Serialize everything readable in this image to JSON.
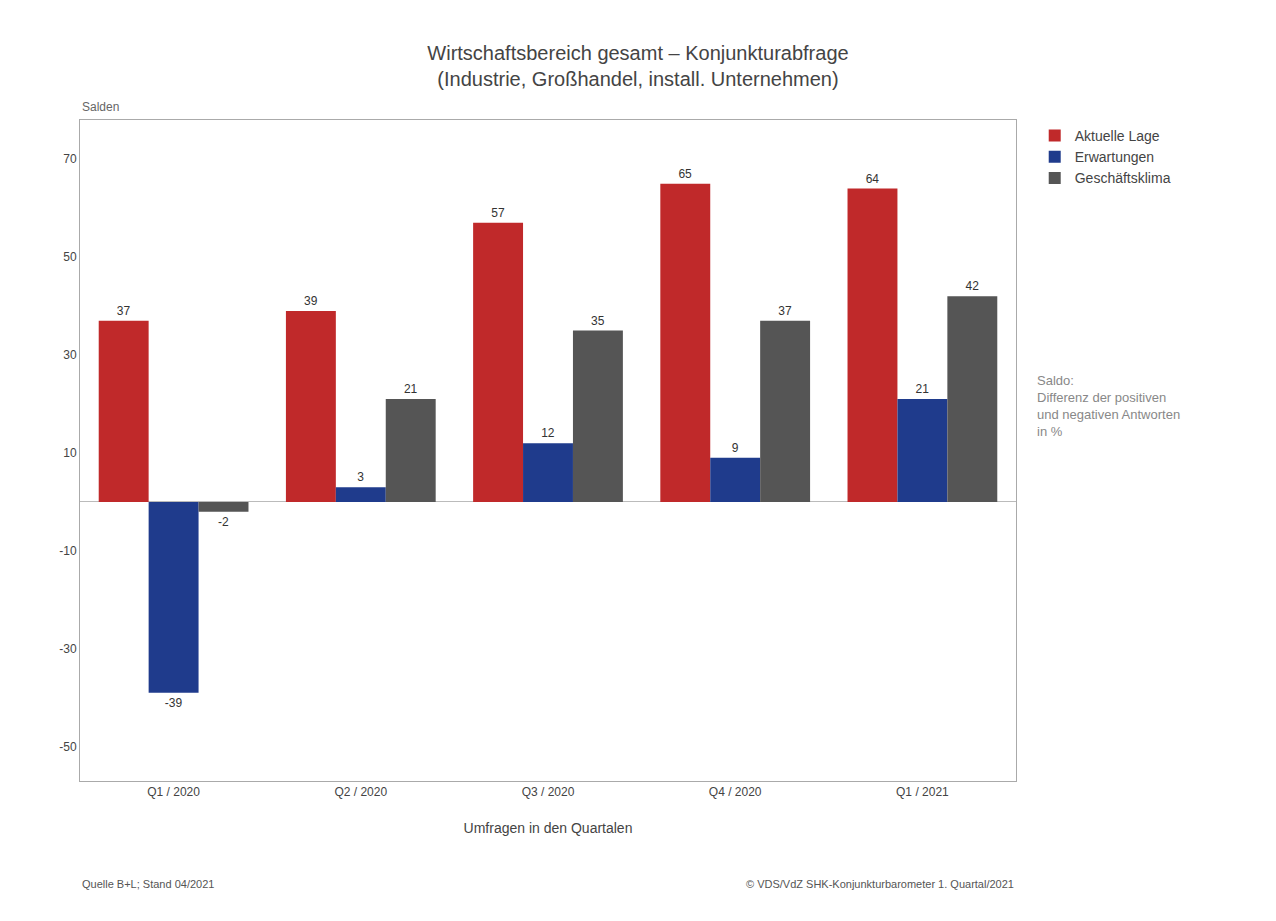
{
  "chart_data": {
    "type": "bar",
    "title": "Wirtschaftsbereich gesamt – Konjunkturabfrage",
    "subtitle": "(Industrie, Großhandel, install. Unternehmen)",
    "x_label": "Umfragen in den Quartalen",
    "categories": [
      "Q1 / 2020",
      "Q2 / 2020",
      "Q3 / 2020",
      "Q4 / 2020",
      "Q1 / 2021"
    ],
    "series": [
      {
        "name": "Aktuelle Lage",
        "color": "#c0292a",
        "values": [
          37,
          39,
          57,
          65,
          64
        ]
      },
      {
        "name": "Erwartungen",
        "color": "#1f3b8c",
        "values": [
          -39,
          3,
          12,
          9,
          21
        ]
      },
      {
        "name": "Geschäftsklima",
        "color": "#555555",
        "values": [
          -2,
          21,
          35,
          37,
          42
        ]
      }
    ],
    "ylim": [
      -57,
      78
    ],
    "yticks": [
      -50,
      -30,
      -10,
      10,
      30,
      50,
      70
    ],
    "grid": false,
    "legend": "right",
    "data_labels": true,
    "annotations": [
      "Salden",
      "Saldo:\nDifferenz der positiven\nund negativen Antworten\nin %",
      "Quelle B+L; Stand 04/2021",
      "© VDS/VdZ SHK-Konjunkturbarometer 1. Quartal/2021"
    ]
  }
}
